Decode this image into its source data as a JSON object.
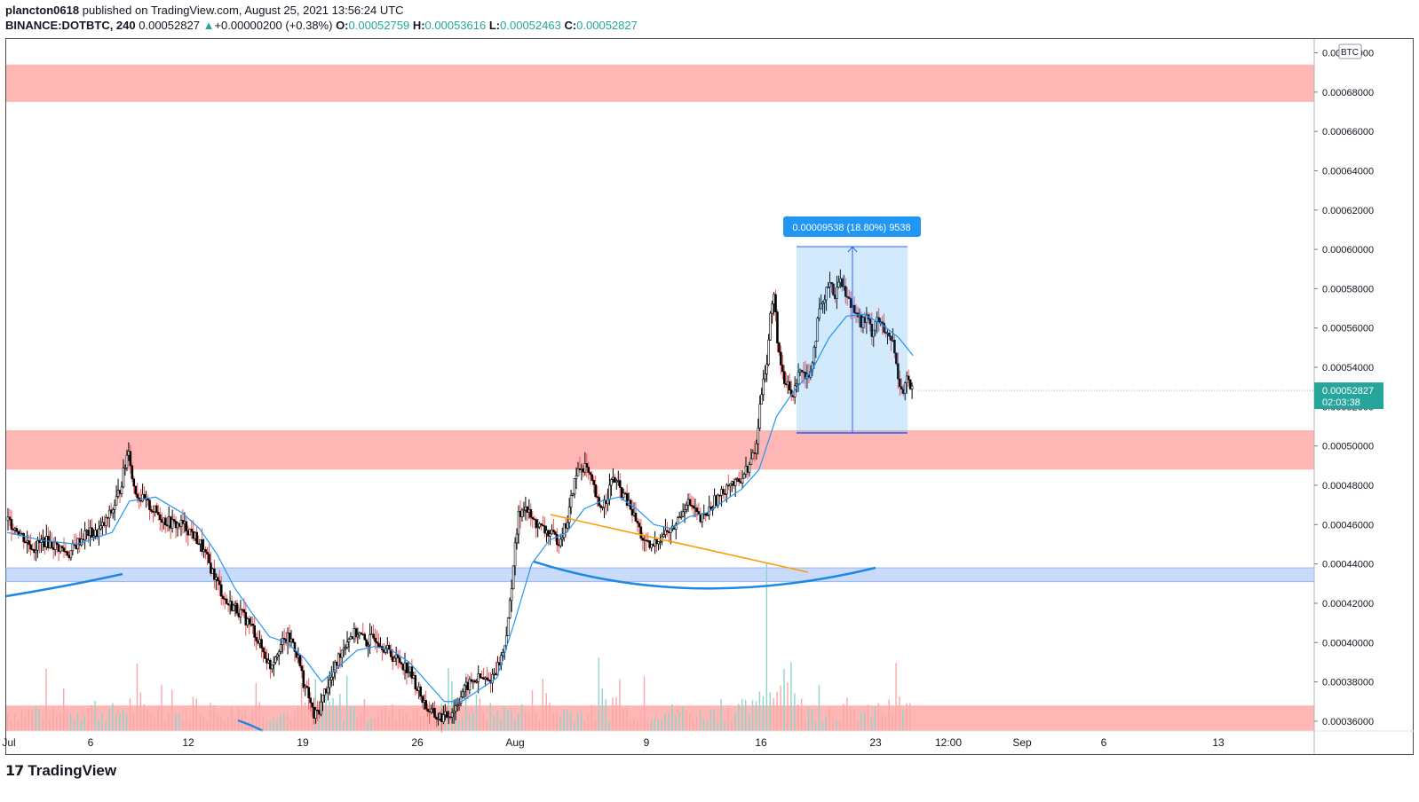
{
  "header": {
    "user": "plancton0618",
    "published_text": "published on TradingView.com, August 25, 2021 13:56:24 UTC",
    "symbol": "BINANCE:DOTBTC, 240",
    "last_price": "0.00052827",
    "change": "+0.00000200 (+0.38%)",
    "ohlc": {
      "o_label": "O:",
      "o": "0.00052759",
      "h_label": "H:",
      "h": "0.00053616",
      "l_label": "L:",
      "l": "0.00052463",
      "c_label": "C:",
      "c": "0.00052827"
    }
  },
  "footer": {
    "brand": "TradingView"
  },
  "colors": {
    "up": "#26a69a",
    "down": "#ef5350",
    "zone_red": "#ffb7b6",
    "zone_blue": "#c9dbfb",
    "ma": "#2196f3",
    "trend": "#ff9800",
    "measure": "#2962ff"
  },
  "chart_data": {
    "type": "candlestick",
    "currency_label": "BTC",
    "y_ticks": [
      "0.00070000",
      "0.00068000",
      "0.00066000",
      "0.00064000",
      "0.00062000",
      "0.00060000",
      "0.00058000",
      "0.00056000",
      "0.00054000",
      "0.00052000",
      "0.00050000",
      "0.00048000",
      "0.00046000",
      "0.00044000",
      "0.00042000",
      "0.00040000",
      "0.00038000",
      "0.00036000"
    ],
    "y_range": [
      0.000355,
      0.000707
    ],
    "x_ticks": [
      "Jul",
      "6",
      "12",
      "19",
      "26",
      "Aug",
      "9",
      "16",
      "23",
      "12:00",
      "Sep",
      "6",
      "13"
    ],
    "last_price_label": "0.00052827",
    "countdown": "02:03:38",
    "measure_label": "0.00009538 (18.80%) 9538",
    "zones": [
      {
        "color": "red",
        "from": 0.000675,
        "to": 0.000694
      },
      {
        "color": "red",
        "from": 0.000488,
        "to": 0.000508
      },
      {
        "color": "blue",
        "from": 0.000431,
        "to": 0.000438
      },
      {
        "color": "red",
        "from": 0.000355,
        "to": 0.000368
      }
    ],
    "close_path": [
      [
        0,
        0.000462
      ],
      [
        5,
        0.000458
      ],
      [
        10,
        0.000452
      ],
      [
        15,
        0.000448
      ],
      [
        20,
        0.000452
      ],
      [
        25,
        0.00045
      ],
      [
        30,
        0.000448
      ],
      [
        35,
        0.000445
      ],
      [
        40,
        0.000451
      ],
      [
        45,
        0.000456
      ],
      [
        50,
        0.000455
      ],
      [
        55,
        0.00046
      ],
      [
        60,
        0.000468
      ],
      [
        64,
        0.000478
      ],
      [
        67,
        0.00049
      ],
      [
        69,
        0.0005
      ],
      [
        71,
        0.000483
      ],
      [
        74,
        0.000475
      ],
      [
        80,
        0.00047
      ],
      [
        85,
        0.000466
      ],
      [
        90,
        0.000462
      ],
      [
        95,
        0.00046
      ],
      [
        100,
        0.00046
      ],
      [
        105,
        0.000456
      ],
      [
        110,
        0.00045
      ],
      [
        115,
        0.00044
      ],
      [
        120,
        0.00043
      ],
      [
        125,
        0.00042
      ],
      [
        130,
        0.000418
      ],
      [
        135,
        0.000413
      ],
      [
        140,
        0.000407
      ],
      [
        145,
        0.000397
      ],
      [
        150,
        0.000388
      ],
      [
        155,
        0.000398
      ],
      [
        160,
        0.000402
      ],
      [
        163,
        0.0004
      ],
      [
        166,
        0.000392
      ],
      [
        169,
        0.00038
      ],
      [
        172,
        0.000372
      ],
      [
        175,
        0.000362
      ],
      [
        178,
        0.000366
      ],
      [
        181,
        0.000375
      ],
      [
        185,
        0.000382
      ],
      [
        190,
        0.000395
      ],
      [
        195,
        0.000403
      ],
      [
        200,
        0.000405
      ],
      [
        205,
        0.0004
      ],
      [
        210,
        0.000403
      ],
      [
        215,
        0.000398
      ],
      [
        220,
        0.000393
      ],
      [
        225,
        0.00039
      ],
      [
        230,
        0.000385
      ],
      [
        235,
        0.000375
      ],
      [
        240,
        0.000366
      ],
      [
        245,
        0.000362
      ],
      [
        250,
        0.000362
      ],
      [
        255,
        0.000366
      ],
      [
        260,
        0.000375
      ],
      [
        265,
        0.00038
      ],
      [
        270,
        0.000382
      ],
      [
        275,
        0.00038
      ],
      [
        280,
        0.000388
      ],
      [
        283,
        0.000395
      ],
      [
        286,
        0.00041
      ],
      [
        289,
        0.00044
      ],
      [
        292,
        0.000464
      ],
      [
        295,
        0.00047
      ],
      [
        300,
        0.000462
      ],
      [
        305,
        0.000458
      ],
      [
        310,
        0.000455
      ],
      [
        315,
        0.000452
      ],
      [
        320,
        0.000462
      ],
      [
        323,
        0.000478
      ],
      [
        326,
        0.000488
      ],
      [
        330,
        0.00049
      ],
      [
        335,
        0.000478
      ],
      [
        338,
        0.000468
      ],
      [
        342,
        0.000473
      ],
      [
        346,
        0.000484
      ],
      [
        350,
        0.000478
      ],
      [
        355,
        0.00047
      ],
      [
        360,
        0.00046
      ],
      [
        364,
        0.00045
      ],
      [
        368,
        0.000448
      ],
      [
        372,
        0.000453
      ],
      [
        376,
        0.000456
      ],
      [
        380,
        0.000457
      ],
      [
        384,
        0.000464
      ],
      [
        388,
        0.000472
      ],
      [
        392,
        0.000468
      ],
      [
        396,
        0.000462
      ],
      [
        400,
        0.000466
      ],
      [
        404,
        0.000472
      ],
      [
        408,
        0.000475
      ],
      [
        412,
        0.000482
      ],
      [
        416,
        0.00048
      ],
      [
        420,
        0.000485
      ],
      [
        424,
        0.00049
      ],
      [
        428,
        0.0005
      ],
      [
        430,
        0.00052
      ],
      [
        432,
        0.000536
      ],
      [
        434,
        0.000542
      ],
      [
        436,
        0.000566
      ],
      [
        438,
        0.000577
      ],
      [
        440,
        0.000555
      ],
      [
        442,
        0.00054
      ],
      [
        444,
        0.00053
      ],
      [
        446,
        0.000532
      ],
      [
        448,
        0.000525
      ],
      [
        450,
        0.000528
      ],
      [
        452,
        0.00054
      ],
      [
        455,
        0.000538
      ],
      [
        458,
        0.000535
      ],
      [
        461,
        0.00055
      ],
      [
        464,
        0.000568
      ],
      [
        467,
        0.000574
      ],
      [
        470,
        0.000586
      ],
      [
        473,
        0.000575
      ],
      [
        476,
        0.000587
      ],
      [
        479,
        0.000577
      ],
      [
        482,
        0.000572
      ],
      [
        485,
        0.00057
      ],
      [
        488,
        0.000562
      ],
      [
        491,
        0.000565
      ],
      [
        494,
        0.000558
      ],
      [
        497,
        0.000566
      ],
      [
        500,
        0.00056
      ],
      [
        503,
        0.000555
      ],
      [
        506,
        0.000553
      ],
      [
        509,
        0.000535
      ],
      [
        512,
        0.000528
      ],
      [
        514,
        0.000535
      ],
      [
        516,
        0.00053
      ],
      [
        517,
        0.000528
      ]
    ],
    "ma_path": [
      [
        0,
        0.000456
      ],
      [
        20,
        0.000452
      ],
      [
        40,
        0.00045
      ],
      [
        60,
        0.000456
      ],
      [
        70,
        0.000472
      ],
      [
        85,
        0.000474
      ],
      [
        100,
        0.000466
      ],
      [
        110,
        0.000458
      ],
      [
        120,
        0.000445
      ],
      [
        130,
        0.000428
      ],
      [
        140,
        0.000415
      ],
      [
        150,
        0.000403
      ],
      [
        160,
        0.0004
      ],
      [
        170,
        0.000392
      ],
      [
        180,
        0.00038
      ],
      [
        190,
        0.000388
      ],
      [
        200,
        0.000396
      ],
      [
        210,
        0.000398
      ],
      [
        220,
        0.000396
      ],
      [
        230,
        0.00039
      ],
      [
        240,
        0.00038
      ],
      [
        250,
        0.00037
      ],
      [
        260,
        0.00037
      ],
      [
        270,
        0.000376
      ],
      [
        280,
        0.000382
      ],
      [
        290,
        0.00041
      ],
      [
        300,
        0.00044
      ],
      [
        310,
        0.000452
      ],
      [
        320,
        0.000456
      ],
      [
        330,
        0.000468
      ],
      [
        340,
        0.000472
      ],
      [
        350,
        0.000474
      ],
      [
        360,
        0.000468
      ],
      [
        370,
        0.00046
      ],
      [
        380,
        0.000458
      ],
      [
        390,
        0.000464
      ],
      [
        400,
        0.000466
      ],
      [
        410,
        0.000472
      ],
      [
        420,
        0.000478
      ],
      [
        430,
        0.000488
      ],
      [
        440,
        0.000515
      ],
      [
        450,
        0.000528
      ],
      [
        460,
        0.000538
      ],
      [
        470,
        0.000555
      ],
      [
        480,
        0.000566
      ],
      [
        490,
        0.000567
      ],
      [
        500,
        0.000562
      ],
      [
        510,
        0.000555
      ],
      [
        518,
        0.000546
      ]
    ],
    "volume_profile": [
      0.5,
      0.6,
      0.4,
      0.7,
      0.5,
      0.8,
      0.6,
      0.4,
      0.9,
      0.5,
      0.6,
      0.7,
      0.45,
      0.55,
      0.8,
      0.6,
      0.5,
      0.7,
      0.4,
      0.65,
      0.75,
      0.5,
      0.6,
      0.9,
      0.55,
      0.45,
      1.0,
      0.6,
      0.7,
      0.5,
      0.4,
      0.8,
      0.6,
      0.55,
      0.7,
      0.5,
      0.65,
      0.45,
      0.6,
      0.85
    ]
  }
}
